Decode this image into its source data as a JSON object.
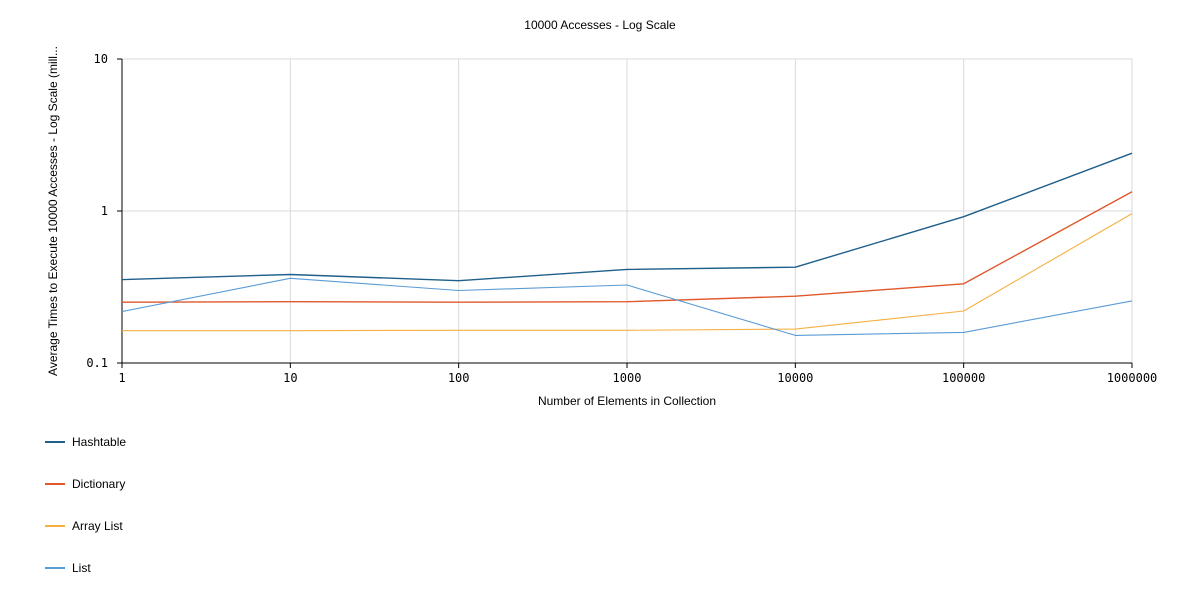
{
  "chart_data": {
    "type": "line",
    "title": "10000 Accesses - Log Scale",
    "xlabel": "Number of Elements in Collection",
    "ylabel": "Average Times to Execute 10000 Accesses - Log Scale (mill...",
    "x_scale": "log",
    "y_scale": "log",
    "xlim": [
      1,
      1000000
    ],
    "ylim": [
      0.1,
      10
    ],
    "grid": true,
    "legend_position": "bottom-left",
    "x": [
      1,
      10,
      100,
      1000,
      10000,
      100000,
      1000000
    ],
    "x_tick_labels": [
      "1",
      "10",
      "100",
      "1000",
      "10000",
      "100000",
      "1000000"
    ],
    "y_ticks": [
      0.1,
      1,
      10
    ],
    "y_tick_labels": [
      "0.1",
      "1",
      "10"
    ],
    "series": [
      {
        "name": "Hashtable",
        "color": "#1F5F8B",
        "values": [
          0.354,
          0.382,
          0.348,
          0.413,
          0.427,
          0.917,
          2.4
        ]
      },
      {
        "name": "Dictionary",
        "color": "#E0582B",
        "values": [
          0.251,
          0.253,
          0.251,
          0.253,
          0.275,
          0.332,
          1.34
        ]
      },
      {
        "name": "Array List",
        "color": "#F5B041",
        "values": [
          0.163,
          0.163,
          0.164,
          0.164,
          0.167,
          0.22,
          0.962
        ]
      },
      {
        "name": "List",
        "color": "#5B9BD5",
        "values": [
          0.218,
          0.361,
          0.3,
          0.326,
          0.152,
          0.159,
          0.256
        ]
      }
    ]
  }
}
